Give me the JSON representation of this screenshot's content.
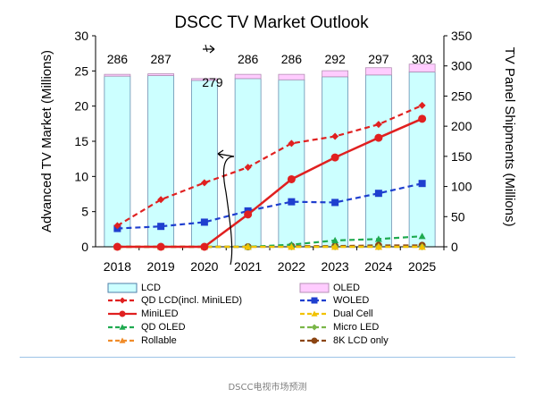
{
  "chart_data": {
    "type": "bar+line",
    "title": "DSCC TV Market Outlook",
    "ylabel_left": "Advanced TV Market (Millions)",
    "ylabel_right": "TV Panel Shipments (Millions)",
    "categories": [
      "2018",
      "2019",
      "2020",
      "2021",
      "2022",
      "2023",
      "2024",
      "2025"
    ],
    "ylim_left": [
      0,
      30
    ],
    "yticks_left": [
      "0",
      "5",
      "10",
      "15",
      "20",
      "25",
      "30"
    ],
    "ylim_right": [
      0,
      350
    ],
    "yticks_right": [
      "0",
      "50",
      "100",
      "150",
      "200",
      "250",
      "300",
      "350"
    ],
    "bar_totals": [
      "286",
      "287",
      "279",
      "286",
      "286",
      "292",
      "297",
      "303"
    ],
    "bars": [
      {
        "name": "LCD",
        "axis": "right",
        "values": [
          283,
          284,
          276,
          279,
          277,
          282,
          285,
          290
        ]
      },
      {
        "name": "OLED",
        "axis": "right",
        "values": [
          3,
          3,
          3,
          7,
          9,
          10,
          12,
          13
        ]
      }
    ],
    "lines": [
      {
        "name": "QD LCD(incl. MiniLED)",
        "values": [
          3.0,
          6.7,
          9.1,
          11.3,
          14.7,
          15.7,
          17.4,
          20.1
        ]
      },
      {
        "name": "WOLED",
        "values": [
          2.6,
          2.9,
          3.5,
          5.1,
          6.4,
          6.3,
          7.6,
          9.0
        ]
      },
      {
        "name": "MiniLED",
        "values": [
          0.0,
          0.0,
          0.0,
          4.6,
          9.6,
          12.7,
          15.5,
          18.2
        ]
      },
      {
        "name": "Dual Cell",
        "values": [
          0,
          0,
          0,
          0,
          0,
          0,
          0,
          0
        ]
      },
      {
        "name": "QD OLED",
        "values": [
          0,
          0,
          0,
          0,
          0.3,
          0.9,
          1.1,
          1.5
        ]
      },
      {
        "name": "Micro LED",
        "values": [
          0,
          0,
          0,
          0,
          0,
          0,
          0,
          0
        ]
      },
      {
        "name": "Rollable",
        "values": [
          0,
          0,
          0,
          0,
          0,
          0,
          0,
          0
        ]
      },
      {
        "name": "8K LCD only",
        "values": [
          0,
          0,
          0,
          0,
          0.1,
          0.1,
          0.2,
          0.2
        ]
      }
    ],
    "grid": false,
    "legend_position": "bottom"
  },
  "legend": [
    {
      "label": "LCD",
      "kind": "bar",
      "fill": "#ccffff",
      "stroke": "#4f7fa8"
    },
    {
      "label": "OLED",
      "kind": "bar",
      "fill": "#ffccff",
      "stroke": "#b48fb4"
    },
    {
      "label": "QD LCD(incl. MiniLED)",
      "kind": "line",
      "color": "#e02020",
      "dash": true,
      "marker": "diamond"
    },
    {
      "label": "WOLED",
      "kind": "line",
      "color": "#1f3fcf",
      "dash": true,
      "marker": "square"
    },
    {
      "label": "MiniLED",
      "kind": "line",
      "color": "#e02020",
      "dash": false,
      "marker": "circle"
    },
    {
      "label": "Dual Cell",
      "kind": "line",
      "color": "#f2c200",
      "dash": true,
      "marker": "triangle"
    },
    {
      "label": "QD OLED",
      "kind": "line",
      "color": "#1faa50",
      "dash": true,
      "marker": "triangle"
    },
    {
      "label": "Micro LED",
      "kind": "line",
      "color": "#7ab648",
      "dash": true,
      "marker": "diamond"
    },
    {
      "label": "Rollable",
      "kind": "line",
      "color": "#f08c2a",
      "dash": true,
      "marker": "triangle"
    },
    {
      "label": "8K LCD only",
      "kind": "line",
      "color": "#8b4513",
      "dash": true,
      "marker": "circle"
    }
  ],
  "caption": "DSCC电视市场预测"
}
